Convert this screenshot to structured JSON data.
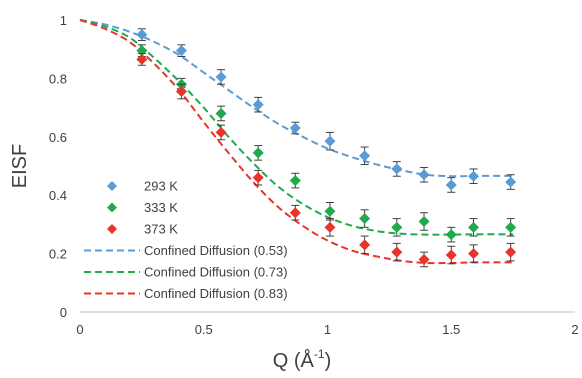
{
  "chart_data": {
    "type": "scatter",
    "xlabel_main": "Q (Å",
    "xlabel_sup": "-1",
    "xlabel_close": ")",
    "ylabel": "EISF",
    "xlim": [
      0,
      2
    ],
    "ylim": [
      0,
      1
    ],
    "x_ticks": [
      "0",
      "0.5",
      "1",
      "1.5",
      "2"
    ],
    "y_ticks": [
      "0",
      "0.2",
      "0.4",
      "0.6",
      "0.8",
      "1"
    ],
    "grid": false,
    "legend_position": "bottom-left",
    "series": [
      {
        "name": "293 K",
        "marker": "diamond",
        "color": "#5b9bd5",
        "x": [
          0.25,
          0.41,
          0.57,
          0.72,
          0.87,
          1.01,
          1.15,
          1.28,
          1.39,
          1.5,
          1.59,
          1.74
        ],
        "y": [
          0.95,
          0.895,
          0.805,
          0.71,
          0.63,
          0.585,
          0.535,
          0.49,
          0.47,
          0.435,
          0.465,
          0.445
        ],
        "err": [
          0.02,
          0.02,
          0.025,
          0.025,
          0.02,
          0.03,
          0.03,
          0.025,
          0.025,
          0.025,
          0.025,
          0.025
        ]
      },
      {
        "name": "333 K",
        "marker": "diamond",
        "color": "#1faa4b",
        "x": [
          0.25,
          0.41,
          0.57,
          0.72,
          0.87,
          1.01,
          1.15,
          1.28,
          1.39,
          1.5,
          1.59,
          1.74
        ],
        "y": [
          0.895,
          0.78,
          0.68,
          0.545,
          0.45,
          0.345,
          0.32,
          0.29,
          0.31,
          0.265,
          0.29,
          0.29
        ],
        "err": [
          0.02,
          0.02,
          0.025,
          0.025,
          0.025,
          0.03,
          0.03,
          0.03,
          0.03,
          0.025,
          0.03,
          0.03
        ]
      },
      {
        "name": "373 K",
        "marker": "diamond",
        "color": "#e8342b",
        "x": [
          0.25,
          0.41,
          0.57,
          0.72,
          0.87,
          1.01,
          1.15,
          1.28,
          1.39,
          1.5,
          1.59,
          1.74
        ],
        "y": [
          0.865,
          0.755,
          0.615,
          0.46,
          0.34,
          0.29,
          0.23,
          0.205,
          0.18,
          0.195,
          0.2,
          0.205
        ],
        "err": [
          0.02,
          0.025,
          0.025,
          0.025,
          0.025,
          0.03,
          0.03,
          0.03,
          0.025,
          0.03,
          0.03,
          0.03
        ]
      },
      {
        "name": "Confined Diffusion (0.53)",
        "line_style": "dashed",
        "color": "#5b9bd5",
        "x": [
          0,
          0.1,
          0.2,
          0.3,
          0.4,
          0.5,
          0.6,
          0.7,
          0.8,
          0.9,
          1.0,
          1.1,
          1.2,
          1.3,
          1.4,
          1.5,
          1.6,
          1.75
        ],
        "y": [
          1.0,
          0.985,
          0.96,
          0.925,
          0.88,
          0.82,
          0.76,
          0.7,
          0.645,
          0.6,
          0.56,
          0.53,
          0.505,
          0.485,
          0.47,
          0.465,
          0.466,
          0.466
        ]
      },
      {
        "name": "Confined Diffusion (0.73)",
        "line_style": "dashed",
        "color": "#1faa4b",
        "x": [
          0,
          0.1,
          0.2,
          0.3,
          0.4,
          0.5,
          0.6,
          0.7,
          0.8,
          0.9,
          1.0,
          1.1,
          1.2,
          1.3,
          1.4,
          1.5,
          1.6,
          1.75
        ],
        "y": [
          1.0,
          0.978,
          0.94,
          0.87,
          0.79,
          0.7,
          0.6,
          0.51,
          0.43,
          0.37,
          0.325,
          0.295,
          0.277,
          0.268,
          0.265,
          0.265,
          0.266,
          0.266
        ]
      },
      {
        "name": "Confined Diffusion (0.83)",
        "line_style": "dashed",
        "color": "#e8342b",
        "x": [
          0,
          0.1,
          0.2,
          0.3,
          0.4,
          0.5,
          0.6,
          0.7,
          0.8,
          0.9,
          1.0,
          1.1,
          1.2,
          1.3,
          1.4,
          1.5,
          1.6,
          1.75
        ],
        "y": [
          1.0,
          0.97,
          0.925,
          0.85,
          0.76,
          0.65,
          0.545,
          0.445,
          0.36,
          0.295,
          0.245,
          0.21,
          0.19,
          0.175,
          0.168,
          0.168,
          0.17,
          0.17
        ]
      }
    ]
  }
}
